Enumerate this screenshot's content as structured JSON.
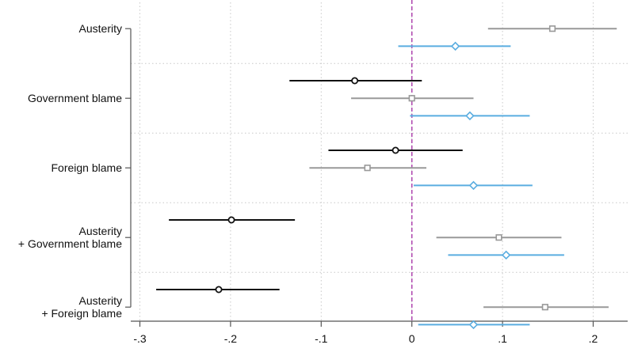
{
  "chart_data": {
    "type": "scatter",
    "orientation": "horizontal",
    "xlim": [
      -0.3,
      0.2
    ],
    "x_ticks": [
      {
        "value": -0.3,
        "label": "-.3"
      },
      {
        "value": -0.2,
        "label": "-.2"
      },
      {
        "value": -0.1,
        "label": "-.1"
      },
      {
        "value": 0,
        "label": "0"
      },
      {
        "value": 0.1,
        "label": ".1"
      },
      {
        "value": 0.2,
        "label": ".2"
      }
    ],
    "reference_line": {
      "x": 0,
      "color": "#b04ab0",
      "style": "dashed"
    },
    "grid": true,
    "groups": [
      {
        "label_lines": [
          "Austerity"
        ]
      },
      {
        "label_lines": [
          "Government blame"
        ]
      },
      {
        "label_lines": [
          "Foreign blame"
        ]
      },
      {
        "label_lines": [
          "Austerity",
          "+ Government blame"
        ]
      },
      {
        "label_lines": [
          "Austerity",
          "+ Foreign blame"
        ]
      }
    ],
    "series": [
      {
        "marker": "circle",
        "color": "#111111",
        "points": [
          {
            "group": 1,
            "estimate": -0.063,
            "ci": [
              -0.135,
              0.011
            ]
          },
          {
            "group": 2,
            "estimate": -0.018,
            "ci": [
              -0.092,
              0.056
            ]
          },
          {
            "group": 3,
            "estimate": -0.199,
            "ci": [
              -0.268,
              -0.129
            ]
          },
          {
            "group": 4,
            "estimate": -0.213,
            "ci": [
              -0.282,
              -0.146
            ]
          }
        ]
      },
      {
        "marker": "square",
        "color": "#999999",
        "points": [
          {
            "group": 0,
            "estimate": 0.155,
            "ci": [
              0.084,
              0.226
            ]
          },
          {
            "group": 1,
            "estimate": 0.0,
            "ci": [
              -0.067,
              0.068
            ]
          },
          {
            "group": 2,
            "estimate": -0.049,
            "ci": [
              -0.113,
              0.016
            ]
          },
          {
            "group": 3,
            "estimate": 0.096,
            "ci": [
              0.027,
              0.165
            ]
          },
          {
            "group": 4,
            "estimate": 0.147,
            "ci": [
              0.079,
              0.217
            ]
          }
        ]
      },
      {
        "marker": "diamond",
        "color": "#5aade0",
        "points": [
          {
            "group": 0,
            "estimate": 0.048,
            "ci": [
              -0.015,
              0.109
            ]
          },
          {
            "group": 1,
            "estimate": 0.064,
            "ci": [
              -0.002,
              0.13
            ]
          },
          {
            "group": 2,
            "estimate": 0.068,
            "ci": [
              0.002,
              0.133
            ]
          },
          {
            "group": 3,
            "estimate": 0.104,
            "ci": [
              0.04,
              0.168
            ]
          },
          {
            "group": 4,
            "estimate": 0.068,
            "ci": [
              0.007,
              0.13
            ]
          }
        ]
      }
    ]
  }
}
